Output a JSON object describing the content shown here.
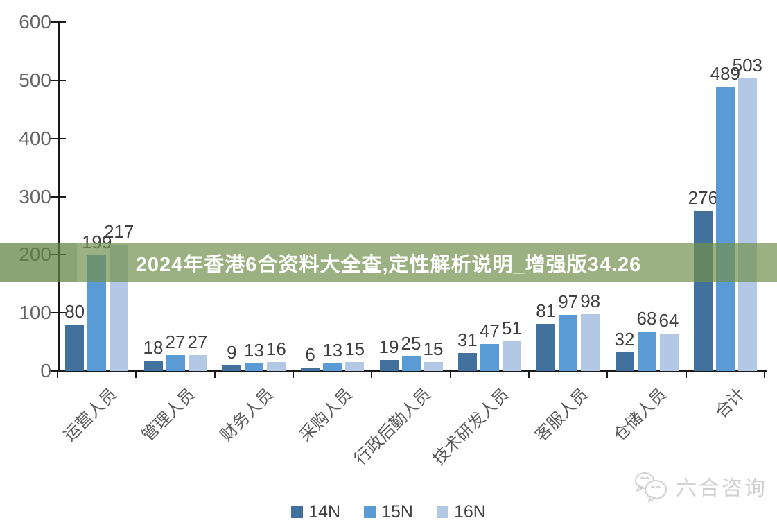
{
  "banner": {
    "text": "2024年香港6合资料大全查,定性解析说明_增强版34.26",
    "bg_color": "#72904B",
    "bg_opacity": 0.7,
    "text_color": "#FFFFFF"
  },
  "chart_data": {
    "type": "bar",
    "title": "",
    "xlabel": "",
    "ylabel": "",
    "categories": [
      "运营人员",
      "管理人员",
      "财务人员",
      "采购人员",
      "行政后勤人员",
      "技术研发人员",
      "客服人员",
      "仓储人员",
      "合计"
    ],
    "series": [
      {
        "name": "14N",
        "color": "#41719C",
        "values": [
          80,
          18,
          9,
          6,
          19,
          31,
          81,
          32,
          276
        ]
      },
      {
        "name": "15N",
        "color": "#5B9BD5",
        "values": [
          199,
          27,
          13,
          13,
          25,
          47,
          97,
          68,
          489
        ]
      },
      {
        "name": "16N",
        "color": "#B3C8E4",
        "values": [
          217,
          27,
          16,
          15,
          15,
          51,
          98,
          64,
          503
        ]
      }
    ],
    "ylim": [
      0,
      600
    ],
    "yticks": [
      0,
      100,
      200,
      300,
      400,
      500,
      600
    ],
    "grid": false,
    "legend_position": "bottom",
    "value_labels": true
  },
  "watermark": {
    "text": "六合咨询",
    "icon": "wechat-bubbles-icon"
  },
  "colors": {
    "axis": "#1a1a1a",
    "tick_label": "#666666",
    "value_label": "#3f3f3f",
    "category_label": "#595959"
  }
}
